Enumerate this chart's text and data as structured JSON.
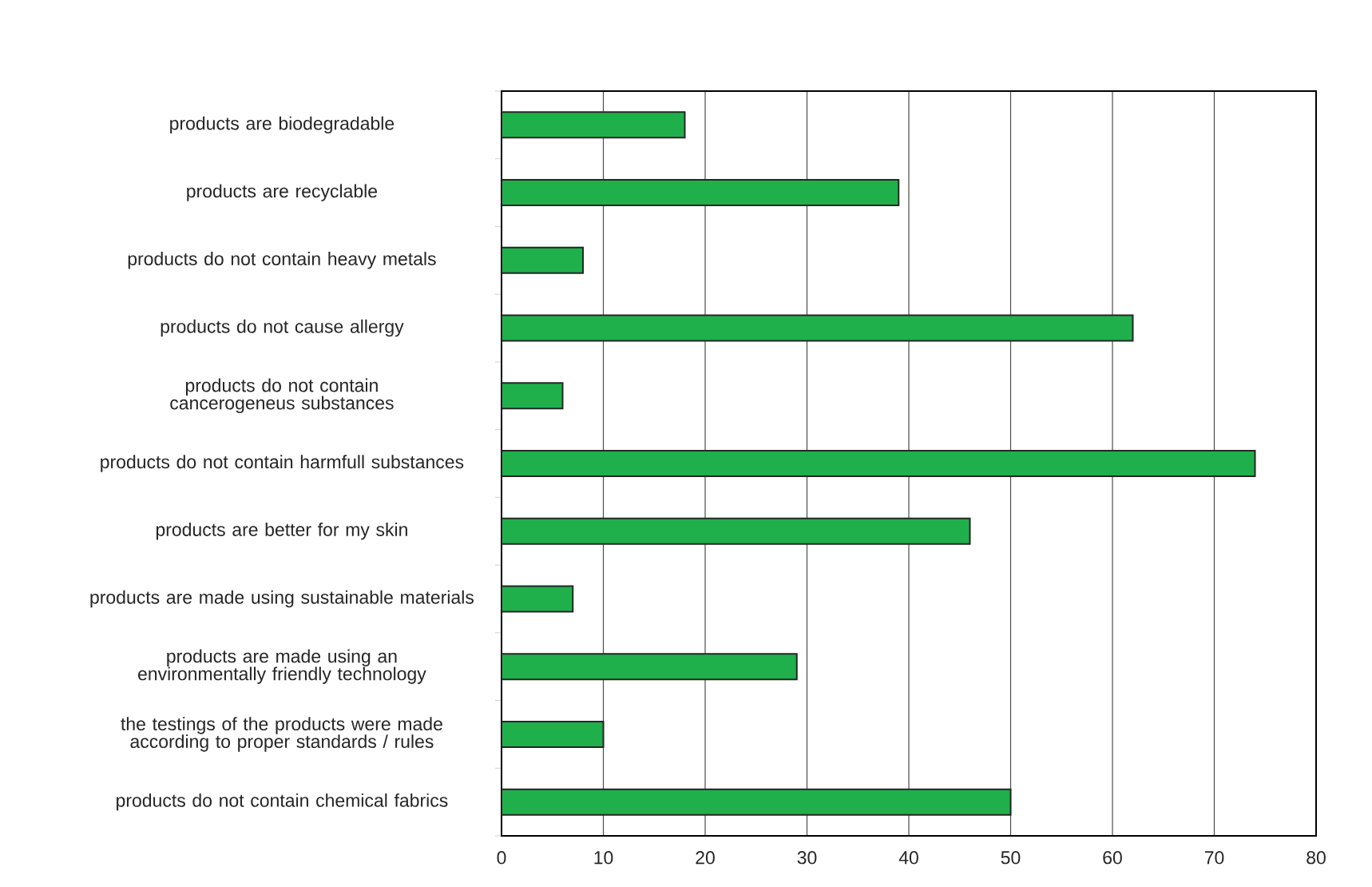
{
  "chart_data": {
    "type": "bar",
    "orientation": "horizontal",
    "categories": [
      "products are biodegradable",
      "products are recyclable",
      "products do not contain heavy metals",
      "products do not cause allergy",
      "products do not contain cancerogeneus substances",
      "products do not contain harmfull substances",
      "products are better for my skin",
      "products are made using sustainable materials",
      "products are made using an environmentally friendly technology",
      "the testings of the products were made according to proper standards / rules",
      "products do not contain chemical fabrics"
    ],
    "values": [
      18,
      39,
      8,
      62,
      6,
      74,
      46,
      7,
      29,
      10,
      50
    ],
    "color": "#1fb04b",
    "xlim": [
      0,
      80
    ],
    "xticks": [
      0,
      10,
      20,
      30,
      40,
      50,
      60,
      70,
      80
    ],
    "grid": "x"
  }
}
